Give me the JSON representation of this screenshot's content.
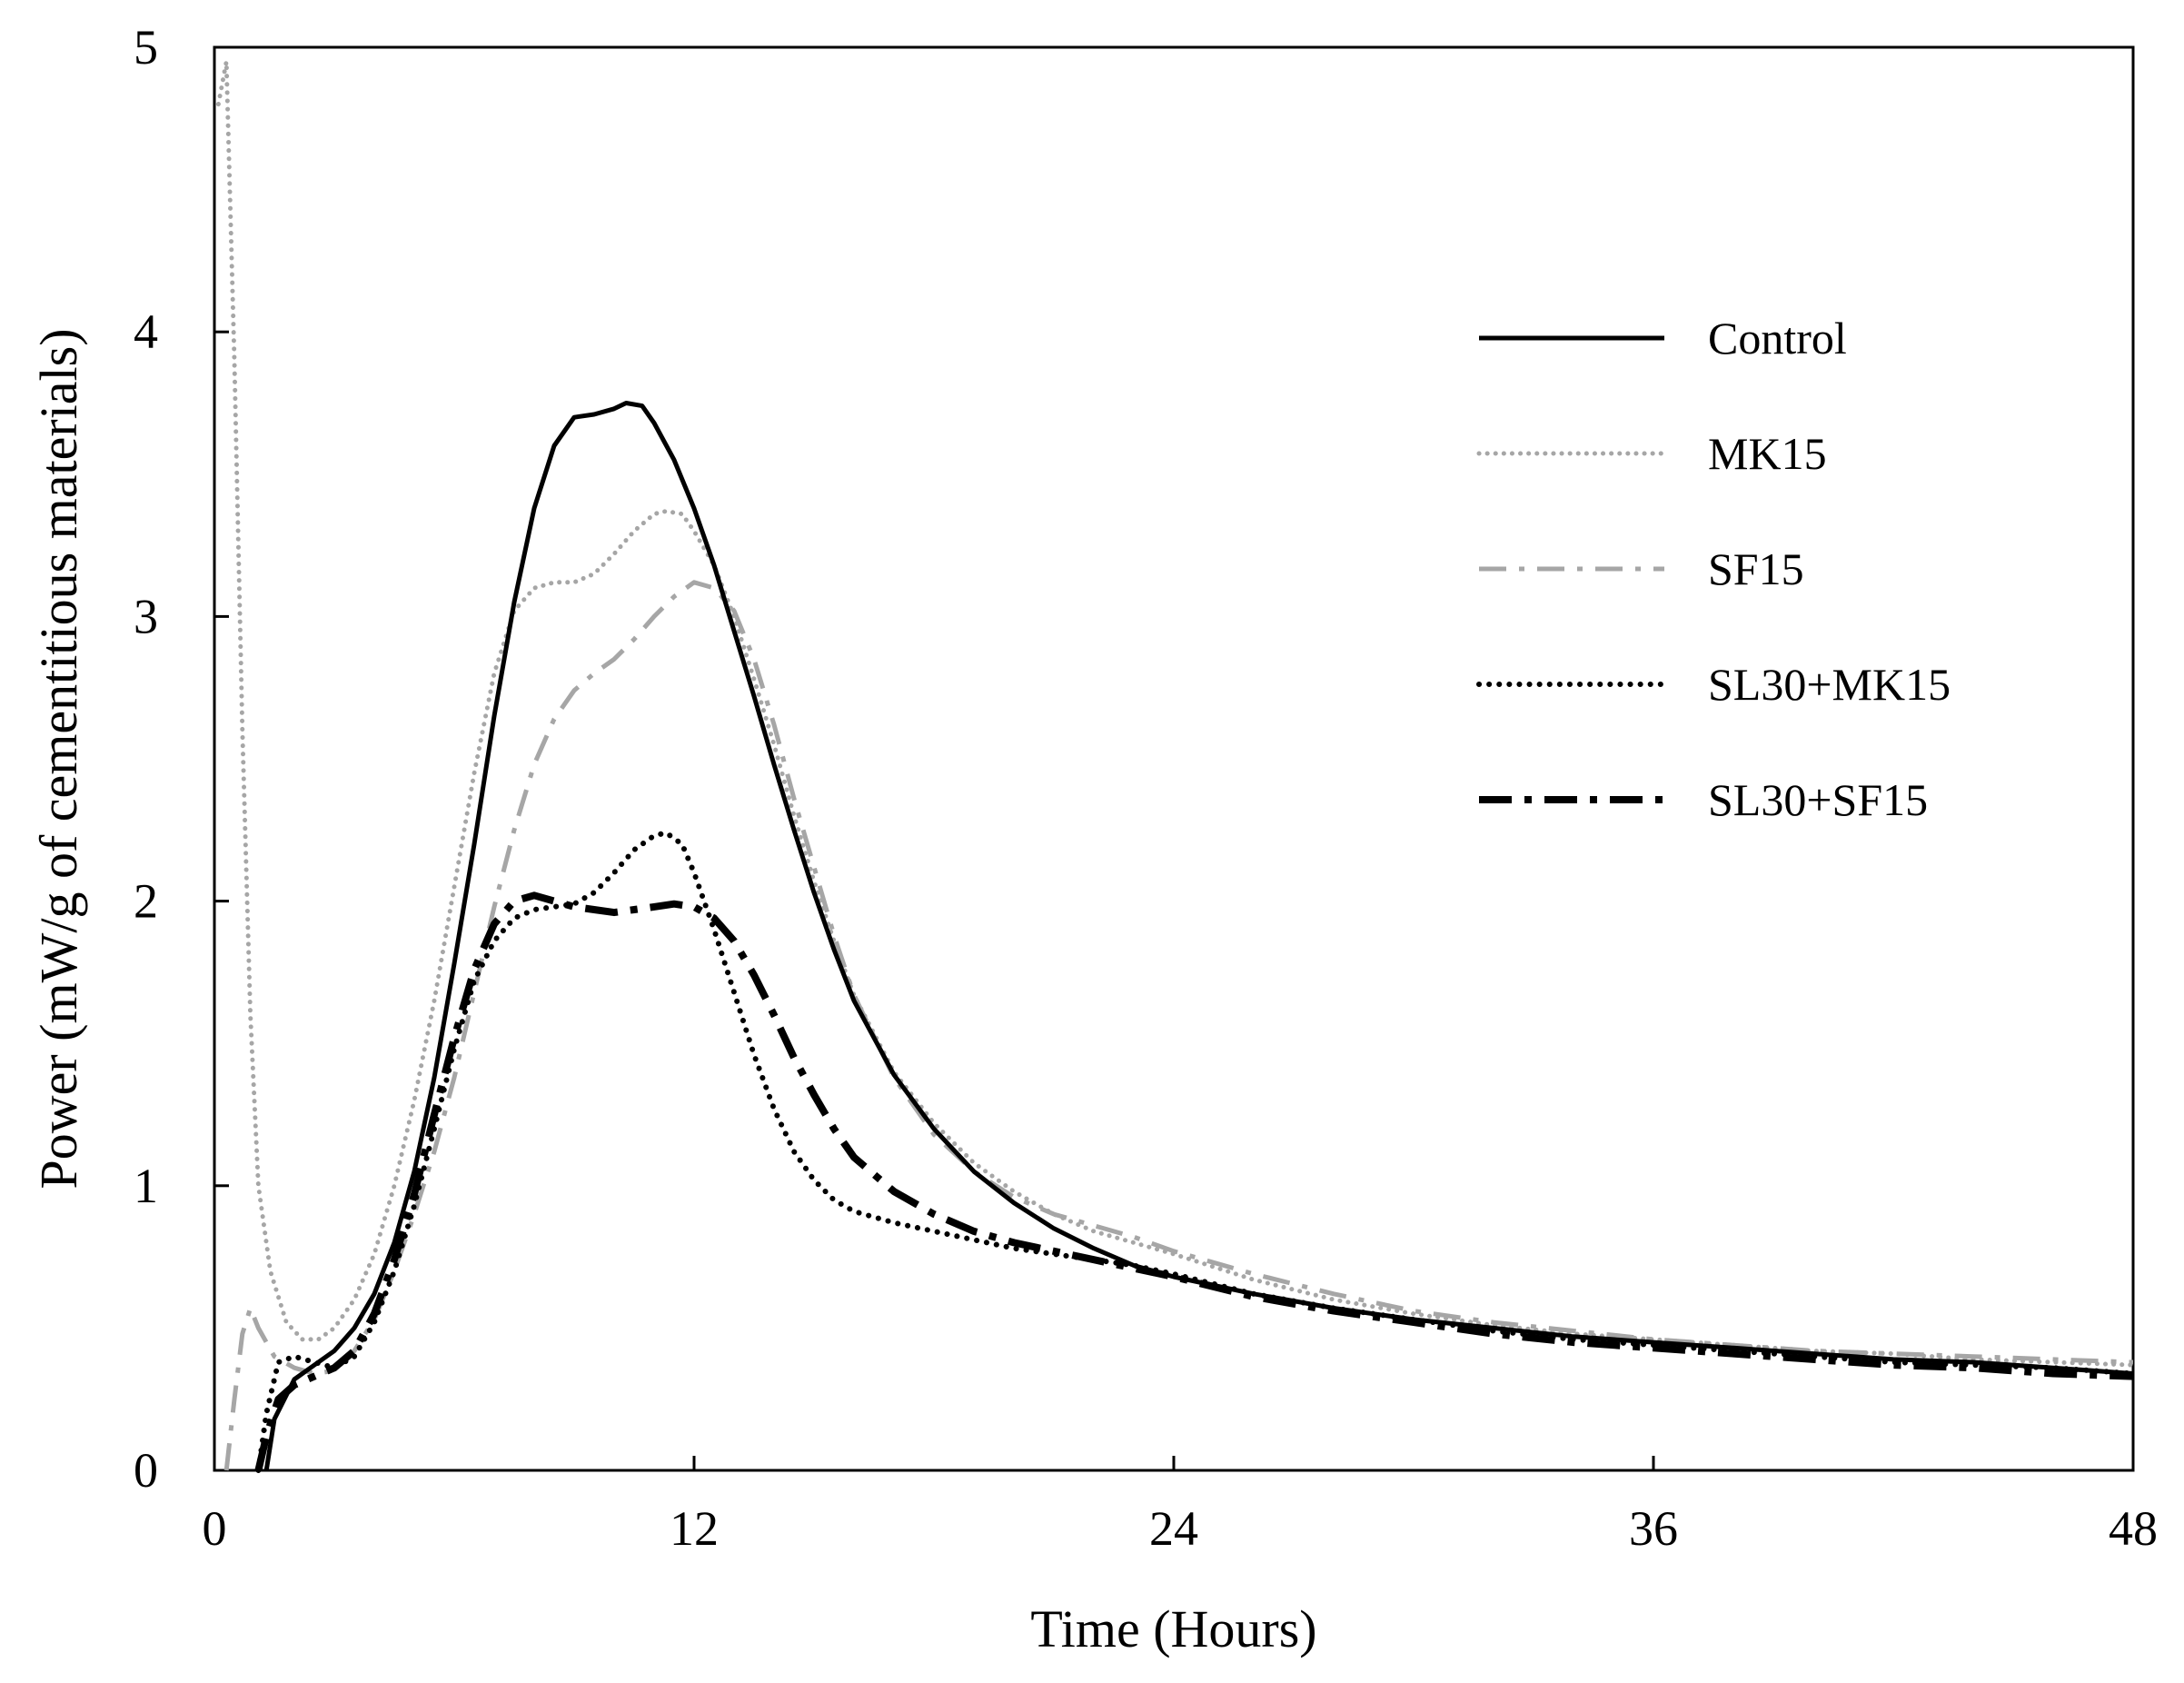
{
  "chart_data": {
    "type": "line",
    "title": "",
    "xlabel": "Time (Hours)",
    "ylabel": "Power (mW/g of cementitious materials)",
    "xlim": [
      0,
      48
    ],
    "ylim": [
      0,
      5
    ],
    "xticks": [
      0,
      12,
      24,
      36,
      48
    ],
    "yticks": [
      0,
      1,
      2,
      3,
      4,
      5
    ],
    "xtick_labels": [
      "0",
      "12",
      "24",
      "36",
      "48"
    ],
    "ytick_labels": [
      "0",
      "1",
      "2",
      "3",
      "4",
      "5"
    ],
    "grid": false,
    "legend_position": "right",
    "series": [
      {
        "name": "Control",
        "color": "#000000",
        "style": "solid",
        "points": [
          [
            1.3,
            0
          ],
          [
            1.5,
            0.18
          ],
          [
            2,
            0.32
          ],
          [
            2.5,
            0.37
          ],
          [
            3,
            0.42
          ],
          [
            3.5,
            0.5
          ],
          [
            4,
            0.62
          ],
          [
            4.5,
            0.8
          ],
          [
            5,
            1.05
          ],
          [
            5.5,
            1.38
          ],
          [
            6,
            1.78
          ],
          [
            6.5,
            2.2
          ],
          [
            7,
            2.65
          ],
          [
            7.5,
            3.05
          ],
          [
            8,
            3.38
          ],
          [
            8.5,
            3.6
          ],
          [
            9,
            3.7
          ],
          [
            9.5,
            3.71
          ],
          [
            10,
            3.73
          ],
          [
            10.3,
            3.75
          ],
          [
            10.7,
            3.74
          ],
          [
            11,
            3.68
          ],
          [
            11.5,
            3.55
          ],
          [
            12,
            3.38
          ],
          [
            12.5,
            3.18
          ],
          [
            13,
            2.95
          ],
          [
            13.5,
            2.72
          ],
          [
            14,
            2.48
          ],
          [
            14.5,
            2.25
          ],
          [
            15,
            2.03
          ],
          [
            15.5,
            1.83
          ],
          [
            16,
            1.65
          ],
          [
            17,
            1.39
          ],
          [
            18,
            1.2
          ],
          [
            19,
            1.05
          ],
          [
            20,
            0.94
          ],
          [
            21,
            0.85
          ],
          [
            22,
            0.78
          ],
          [
            23,
            0.72
          ],
          [
            24,
            0.68
          ],
          [
            26,
            0.62
          ],
          [
            28,
            0.57
          ],
          [
            30,
            0.53
          ],
          [
            32,
            0.5
          ],
          [
            34,
            0.47
          ],
          [
            36,
            0.45
          ],
          [
            38,
            0.43
          ],
          [
            40,
            0.41
          ],
          [
            42,
            0.39
          ],
          [
            44,
            0.38
          ],
          [
            46,
            0.36
          ],
          [
            48,
            0.34
          ]
        ]
      },
      {
        "name": "MK15",
        "color": "#a6a6a6",
        "style": "dotted",
        "points": [
          [
            0.1,
            4.8
          ],
          [
            0.3,
            4.95
          ],
          [
            0.5,
            3.9
          ],
          [
            0.7,
            2.6
          ],
          [
            0.9,
            1.6
          ],
          [
            1.1,
            1.0
          ],
          [
            1.4,
            0.7
          ],
          [
            1.8,
            0.52
          ],
          [
            2.2,
            0.46
          ],
          [
            2.6,
            0.46
          ],
          [
            3,
            0.5
          ],
          [
            3.5,
            0.6
          ],
          [
            4,
            0.76
          ],
          [
            4.5,
            1.0
          ],
          [
            5,
            1.3
          ],
          [
            5.5,
            1.65
          ],
          [
            6,
            2.05
          ],
          [
            6.5,
            2.45
          ],
          [
            7,
            2.8
          ],
          [
            7.5,
            3.02
          ],
          [
            8,
            3.1
          ],
          [
            8.5,
            3.12
          ],
          [
            9,
            3.12
          ],
          [
            9.5,
            3.15
          ],
          [
            10,
            3.22
          ],
          [
            10.5,
            3.3
          ],
          [
            11,
            3.36
          ],
          [
            11.3,
            3.37
          ],
          [
            11.7,
            3.36
          ],
          [
            12,
            3.3
          ],
          [
            12.5,
            3.18
          ],
          [
            13,
            3.0
          ],
          [
            13.5,
            2.78
          ],
          [
            14,
            2.55
          ],
          [
            14.5,
            2.3
          ],
          [
            15,
            2.07
          ],
          [
            15.5,
            1.86
          ],
          [
            16,
            1.67
          ],
          [
            17,
            1.4
          ],
          [
            18,
            1.22
          ],
          [
            19,
            1.08
          ],
          [
            20,
            0.98
          ],
          [
            21,
            0.9
          ],
          [
            22,
            0.84
          ],
          [
            23,
            0.8
          ],
          [
            24,
            0.76
          ],
          [
            26,
            0.67
          ],
          [
            28,
            0.6
          ],
          [
            30,
            0.55
          ],
          [
            32,
            0.51
          ],
          [
            34,
            0.48
          ],
          [
            36,
            0.46
          ],
          [
            38,
            0.44
          ],
          [
            40,
            0.42
          ],
          [
            42,
            0.41
          ],
          [
            44,
            0.39
          ],
          [
            46,
            0.38
          ],
          [
            48,
            0.37
          ]
        ]
      },
      {
        "name": "SF15",
        "color": "#a6a6a6",
        "style": "dashdot",
        "points": [
          [
            0.3,
            0
          ],
          [
            0.5,
            0.25
          ],
          [
            0.7,
            0.48
          ],
          [
            0.9,
            0.57
          ],
          [
            1.1,
            0.5
          ],
          [
            1.5,
            0.4
          ],
          [
            2,
            0.36
          ],
          [
            2.5,
            0.34
          ],
          [
            3,
            0.35
          ],
          [
            3.5,
            0.42
          ],
          [
            4,
            0.53
          ],
          [
            4.5,
            0.7
          ],
          [
            5,
            0.9
          ],
          [
            5.5,
            1.12
          ],
          [
            6,
            1.38
          ],
          [
            6.5,
            1.68
          ],
          [
            7,
            1.98
          ],
          [
            7.5,
            2.25
          ],
          [
            8,
            2.48
          ],
          [
            8.5,
            2.64
          ],
          [
            9,
            2.74
          ],
          [
            9.5,
            2.8
          ],
          [
            10,
            2.85
          ],
          [
            10.5,
            2.92
          ],
          [
            11,
            3.0
          ],
          [
            11.5,
            3.07
          ],
          [
            12,
            3.12
          ],
          [
            12.5,
            3.1
          ],
          [
            13,
            3.02
          ],
          [
            13.5,
            2.85
          ],
          [
            14,
            2.62
          ],
          [
            14.5,
            2.36
          ],
          [
            15,
            2.12
          ],
          [
            15.5,
            1.88
          ],
          [
            16,
            1.67
          ],
          [
            17,
            1.38
          ],
          [
            18,
            1.18
          ],
          [
            19,
            1.05
          ],
          [
            20,
            0.96
          ],
          [
            21,
            0.9
          ],
          [
            22,
            0.86
          ],
          [
            23,
            0.82
          ],
          [
            24,
            0.77
          ],
          [
            26,
            0.69
          ],
          [
            28,
            0.62
          ],
          [
            30,
            0.56
          ],
          [
            32,
            0.52
          ],
          [
            34,
            0.49
          ],
          [
            36,
            0.46
          ],
          [
            38,
            0.44
          ],
          [
            40,
            0.42
          ],
          [
            42,
            0.41
          ],
          [
            44,
            0.4
          ],
          [
            46,
            0.39
          ],
          [
            48,
            0.38
          ]
        ]
      },
      {
        "name": "SL30+MK15",
        "color": "#000000",
        "style": "dotted",
        "points": [
          [
            1.1,
            0
          ],
          [
            1.3,
            0.2
          ],
          [
            1.6,
            0.38
          ],
          [
            2,
            0.4
          ],
          [
            2.5,
            0.38
          ],
          [
            3,
            0.36
          ],
          [
            3.5,
            0.4
          ],
          [
            4,
            0.52
          ],
          [
            4.5,
            0.7
          ],
          [
            5,
            0.93
          ],
          [
            5.5,
            1.2
          ],
          [
            6,
            1.48
          ],
          [
            6.5,
            1.72
          ],
          [
            7,
            1.86
          ],
          [
            7.5,
            1.94
          ],
          [
            8,
            1.97
          ],
          [
            8.5,
            1.98
          ],
          [
            9,
            1.99
          ],
          [
            9.5,
            2.03
          ],
          [
            10,
            2.1
          ],
          [
            10.5,
            2.18
          ],
          [
            11,
            2.23
          ],
          [
            11.3,
            2.24
          ],
          [
            11.7,
            2.2
          ],
          [
            12,
            2.1
          ],
          [
            12.5,
            1.9
          ],
          [
            13,
            1.68
          ],
          [
            13.5,
            1.46
          ],
          [
            14,
            1.27
          ],
          [
            14.5,
            1.12
          ],
          [
            15,
            1.02
          ],
          [
            15.5,
            0.95
          ],
          [
            16,
            0.91
          ],
          [
            17,
            0.87
          ],
          [
            18,
            0.84
          ],
          [
            19,
            0.81
          ],
          [
            20,
            0.78
          ],
          [
            21,
            0.76
          ],
          [
            22,
            0.74
          ],
          [
            23,
            0.72
          ],
          [
            24,
            0.69
          ],
          [
            26,
            0.62
          ],
          [
            28,
            0.57
          ],
          [
            30,
            0.53
          ],
          [
            32,
            0.49
          ],
          [
            34,
            0.46
          ],
          [
            36,
            0.44
          ],
          [
            38,
            0.42
          ],
          [
            40,
            0.4
          ],
          [
            42,
            0.38
          ],
          [
            44,
            0.37
          ],
          [
            46,
            0.36
          ],
          [
            48,
            0.34
          ]
        ]
      },
      {
        "name": "SL30+SF15",
        "color": "#000000",
        "style": "dashdot",
        "points": [
          [
            1.1,
            0
          ],
          [
            1.3,
            0.12
          ],
          [
            1.6,
            0.25
          ],
          [
            2,
            0.3
          ],
          [
            2.5,
            0.33
          ],
          [
            3,
            0.36
          ],
          [
            3.5,
            0.42
          ],
          [
            4,
            0.55
          ],
          [
            4.5,
            0.74
          ],
          [
            5,
            0.97
          ],
          [
            5.5,
            1.25
          ],
          [
            6,
            1.52
          ],
          [
            6.5,
            1.76
          ],
          [
            7,
            1.92
          ],
          [
            7.5,
            2.0
          ],
          [
            8,
            2.02
          ],
          [
            8.5,
            2.0
          ],
          [
            9,
            1.98
          ],
          [
            9.5,
            1.97
          ],
          [
            10,
            1.96
          ],
          [
            10.5,
            1.97
          ],
          [
            11,
            1.98
          ],
          [
            11.5,
            1.99
          ],
          [
            12,
            1.98
          ],
          [
            12.5,
            1.94
          ],
          [
            13,
            1.86
          ],
          [
            13.5,
            1.74
          ],
          [
            14,
            1.6
          ],
          [
            14.5,
            1.45
          ],
          [
            15,
            1.32
          ],
          [
            15.5,
            1.2
          ],
          [
            16,
            1.1
          ],
          [
            17,
            0.98
          ],
          [
            18,
            0.9
          ],
          [
            19,
            0.84
          ],
          [
            20,
            0.8
          ],
          [
            21,
            0.77
          ],
          [
            22,
            0.74
          ],
          [
            23,
            0.71
          ],
          [
            24,
            0.68
          ],
          [
            26,
            0.61
          ],
          [
            28,
            0.56
          ],
          [
            30,
            0.52
          ],
          [
            32,
            0.48
          ],
          [
            34,
            0.45
          ],
          [
            36,
            0.43
          ],
          [
            38,
            0.41
          ],
          [
            40,
            0.39
          ],
          [
            42,
            0.37
          ],
          [
            44,
            0.36
          ],
          [
            46,
            0.34
          ],
          [
            48,
            0.33
          ]
        ]
      }
    ]
  }
}
